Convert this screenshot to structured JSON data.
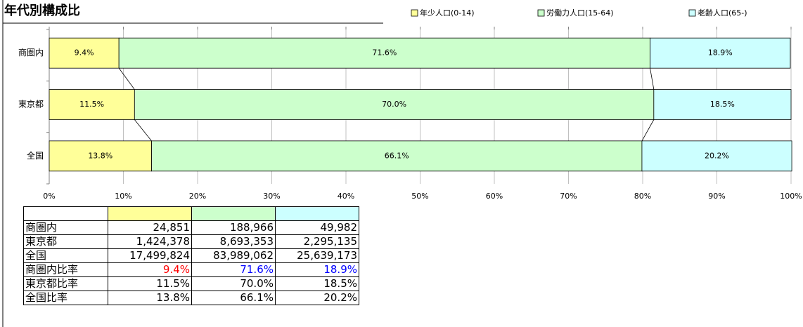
{
  "chart_data": {
    "type": "stacked_barh",
    "title": "年代別構成比",
    "categories": [
      "商圏内",
      "東京都",
      "全国"
    ],
    "series": [
      {
        "name": "年少人口(0-14)",
        "color": "#ffff99",
        "values": [
          9.4,
          11.5,
          13.8
        ],
        "value_labels": [
          "9.4%",
          "11.5%",
          "13.8%"
        ]
      },
      {
        "name": "労働力人口(15-64)",
        "color": "#ccffcc",
        "values": [
          71.6,
          70.0,
          66.1
        ],
        "value_labels": [
          "71.6%",
          "70.0%",
          "66.1%"
        ]
      },
      {
        "name": "老齢人口(65-)",
        "color": "#ccffff",
        "values": [
          18.9,
          18.5,
          20.2
        ],
        "value_labels": [
          "18.9%",
          "18.5%",
          "20.2%"
        ]
      }
    ],
    "xlim": [
      0,
      100
    ],
    "xticks": [
      {
        "value": 0,
        "label": "0%"
      },
      {
        "value": 10,
        "label": "10%"
      },
      {
        "value": 20,
        "label": "20%"
      },
      {
        "value": 30,
        "label": "30%"
      },
      {
        "value": 40,
        "label": "40%"
      },
      {
        "value": 50,
        "label": "50%"
      },
      {
        "value": 60,
        "label": "60%"
      },
      {
        "value": 70,
        "label": "70%"
      },
      {
        "value": 80,
        "label": "80%"
      },
      {
        "value": 90,
        "label": "90%"
      },
      {
        "value": 100,
        "label": "100%"
      }
    ],
    "grid": true,
    "legend": "top"
  },
  "table": {
    "rows": [
      [
        "商圏内",
        "24,851",
        "188,966",
        "49,982"
      ],
      [
        "東京都",
        "1,424,378",
        "8,693,353",
        "2,295,135"
      ],
      [
        "全国",
        "17,499,824",
        "83,989,062",
        "25,639,173"
      ],
      [
        "商圏内比率",
        "9.4%",
        "71.6%",
        "18.9%"
      ],
      [
        "東京都比率",
        "11.5%",
        "70.0%",
        "18.5%"
      ],
      [
        "全国比率",
        "13.8%",
        "66.1%",
        "20.2%"
      ]
    ],
    "highlight_row": 3,
    "highlight_colors": [
      "#ff0000",
      "#0000ff",
      "#0000ff"
    ]
  }
}
